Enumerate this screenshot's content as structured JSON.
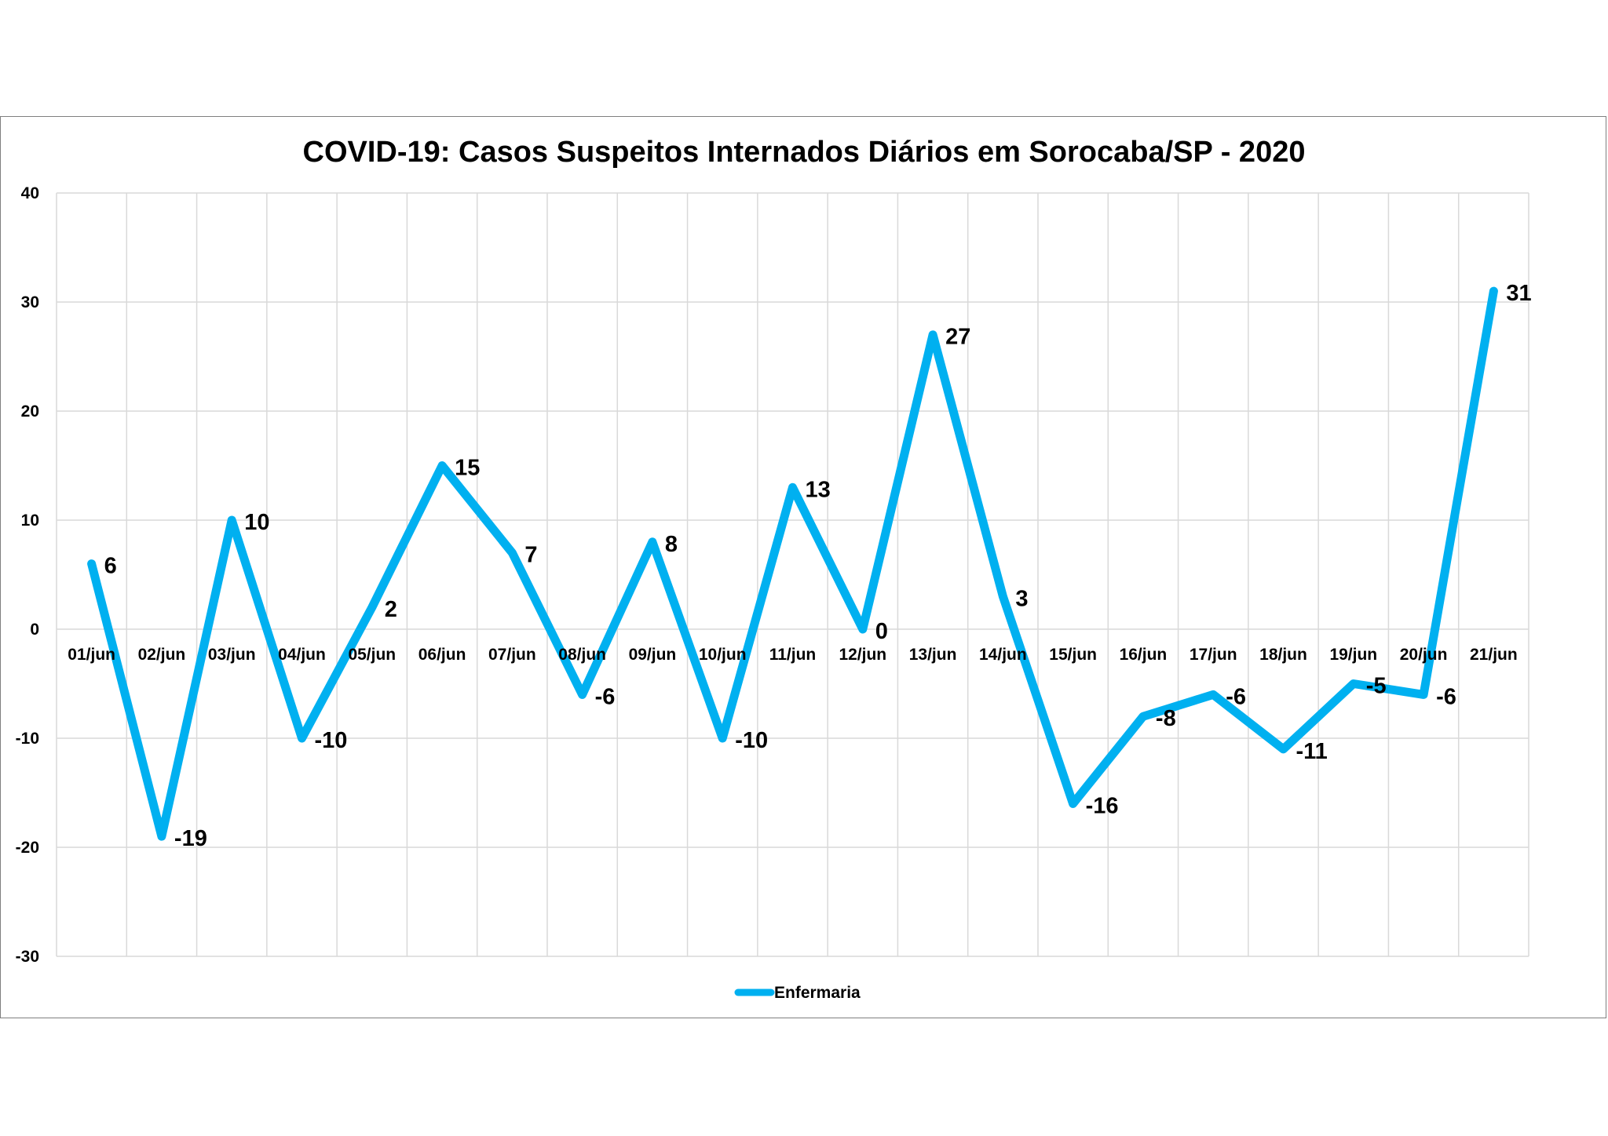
{
  "chart_data": {
    "type": "line",
    "title": "COVID-19: Casos Suspeitos Internados Diários em Sorocaba/SP - 2020",
    "xlabel": "",
    "ylabel": "",
    "ylim": [
      -30,
      40
    ],
    "yticks": [
      "40",
      "30",
      "20",
      "10",
      "0",
      "-10",
      "-20",
      "-30"
    ],
    "ytick_values": [
      40,
      30,
      20,
      10,
      0,
      -10,
      -20,
      -30
    ],
    "grid": true,
    "legend_position": "bottom",
    "line_color": "#00b0f0",
    "categories": [
      "01/jun",
      "02/jun",
      "03/jun",
      "04/jun",
      "05/jun",
      "06/jun",
      "07/jun",
      "08/jun",
      "09/jun",
      "10/jun",
      "11/jun",
      "12/jun",
      "13/jun",
      "14/jun",
      "15/jun",
      "16/jun",
      "17/jun",
      "18/jun",
      "19/jun",
      "20/jun",
      "21/jun"
    ],
    "series": [
      {
        "name": "Enfermaria",
        "values": [
          6,
          -19,
          10,
          -10,
          2,
          15,
          7,
          -6,
          8,
          -10,
          13,
          0,
          27,
          3,
          -16,
          -8,
          -6,
          -11,
          -5,
          -6,
          31
        ],
        "labels": [
          "6",
          "-19",
          "10",
          "-10",
          "2",
          "15",
          "7",
          "-6",
          "8",
          "-10",
          "13",
          "0",
          "27",
          "3",
          "-16",
          "-8",
          "-6",
          "-11",
          "-5",
          "-6",
          "31"
        ]
      }
    ]
  }
}
